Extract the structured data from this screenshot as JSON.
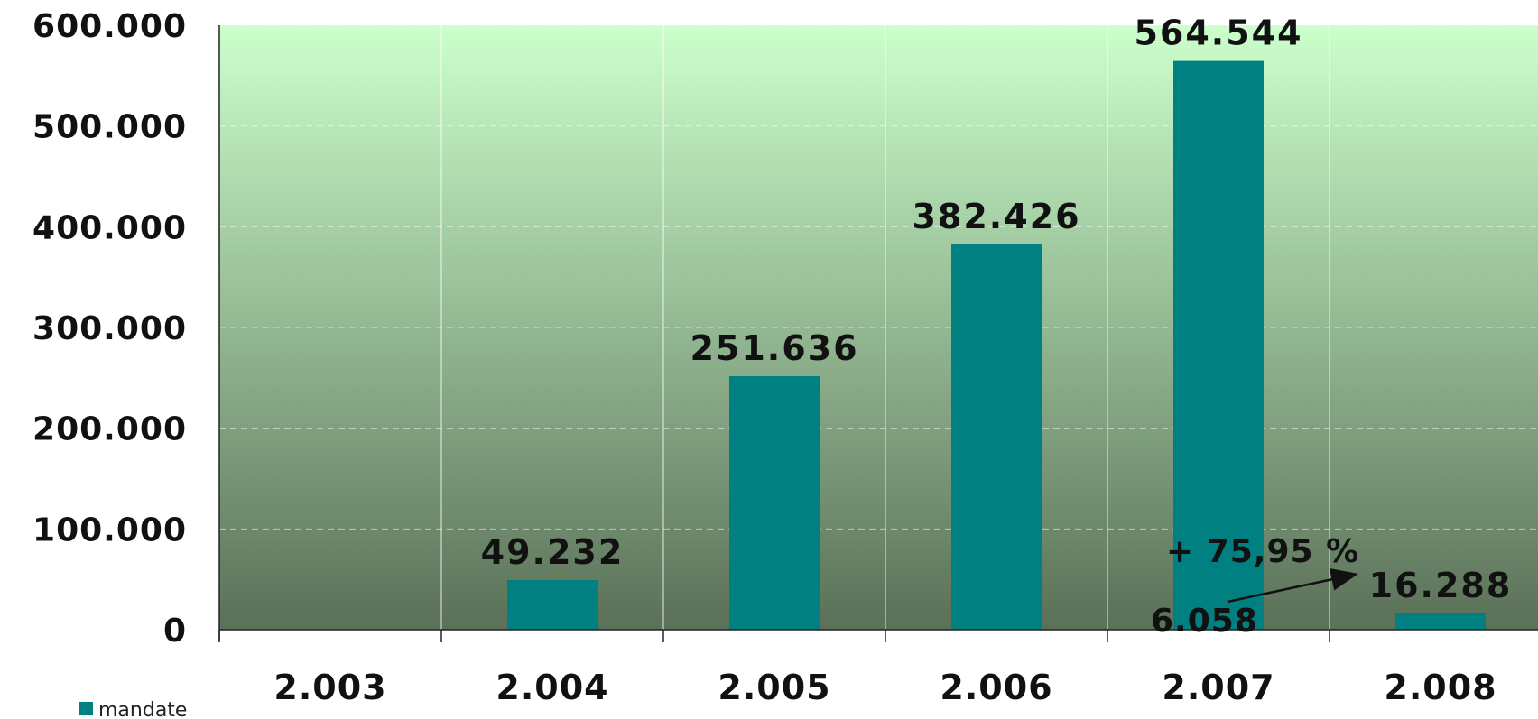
{
  "chart_data": {
    "type": "bar",
    "categories": [
      "2.003",
      "2.004",
      "2.005",
      "2.006",
      "2.007",
      "2.008"
    ],
    "values": [
      0,
      49232,
      251636,
      382426,
      564544,
      16288
    ],
    "data_labels": [
      "",
      "49.232",
      "251.636",
      "382.426",
      "564.544",
      "16.288"
    ],
    "y_ticks": [
      "0",
      "100.000",
      "200.000",
      "300.000",
      "400.000",
      "500.000",
      "600.000"
    ],
    "ylim": [
      0,
      600000
    ],
    "grid": true,
    "legend": {
      "name": "mandate",
      "placement": "bottom-left"
    },
    "bar_color": "#008080",
    "background_gradient": [
      "#ccffcc",
      "#5a7058"
    ],
    "annotations": {
      "base_value": 6058,
      "base_label": "6.058",
      "growth_label": "+ 75,95 %"
    }
  }
}
